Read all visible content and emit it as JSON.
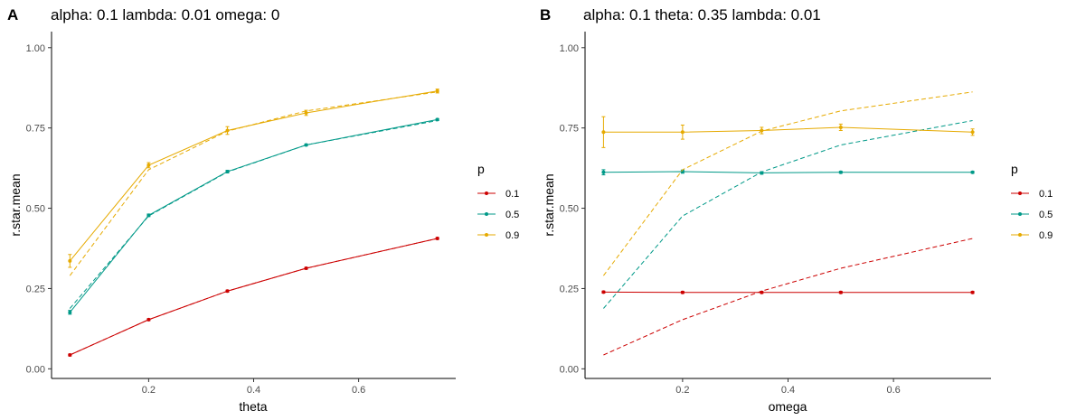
{
  "chart_data": [
    {
      "panel_tag": "A",
      "type": "line",
      "title": "alpha: 0.1 lambda: 0.01 omega: 0",
      "xlabel": "theta",
      "ylabel": "r.star.mean",
      "x_ticks": [
        0.2,
        0.4,
        0.6
      ],
      "y_ticks": [
        "0.00",
        "0.25",
        "0.50",
        "0.75",
        "1.00"
      ],
      "xlim": [
        0.015,
        0.785
      ],
      "ylim": [
        -0.03,
        1.05
      ],
      "grid": false,
      "legend": {
        "title": "p",
        "placement": "right"
      },
      "x": [
        0.05,
        0.2,
        0.35,
        0.5,
        0.75
      ],
      "series": [
        {
          "name": "0.1",
          "color": "#CC0000",
          "values": [
            0.043,
            0.153,
            0.242,
            0.313,
            0.406
          ],
          "errors": [
            0.003,
            0.003,
            0.003,
            0.003,
            0.003
          ],
          "reference": [
            0.043,
            0.153,
            0.242,
            0.313,
            0.406
          ]
        },
        {
          "name": "0.5",
          "color": "#009988",
          "values": [
            0.176,
            0.478,
            0.614,
            0.697,
            0.776
          ],
          "errors": [
            0.006,
            0.004,
            0.004,
            0.003,
            0.003
          ],
          "reference": [
            0.188,
            0.476,
            0.613,
            0.697,
            0.773
          ]
        },
        {
          "name": "0.9",
          "color": "#E6AA00",
          "values": [
            0.336,
            0.634,
            0.742,
            0.797,
            0.865
          ],
          "errors": [
            0.02,
            0.008,
            0.012,
            0.008,
            0.006
          ],
          "reference": [
            0.29,
            0.62,
            0.74,
            0.803,
            0.862
          ]
        }
      ]
    },
    {
      "panel_tag": "B",
      "type": "line",
      "title": "alpha: 0.1 theta: 0.35 lambda: 0.01",
      "xlabel": "omega",
      "ylabel": "r.star.mean",
      "x_ticks": [
        0.2,
        0.4,
        0.6
      ],
      "y_ticks": [
        "0.00",
        "0.25",
        "0.50",
        "0.75",
        "1.00"
      ],
      "xlim": [
        0.015,
        0.785
      ],
      "ylim": [
        -0.03,
        1.05
      ],
      "grid": false,
      "legend": {
        "title": "p",
        "placement": "right"
      },
      "x": [
        0.05,
        0.2,
        0.35,
        0.5,
        0.75
      ],
      "series": [
        {
          "name": "0.1",
          "color": "#CC0000",
          "values": [
            0.239,
            0.238,
            0.238,
            0.238,
            0.238
          ],
          "errors": [
            0.003,
            0.003,
            0.003,
            0.003,
            0.003
          ],
          "reference": [
            0.043,
            0.153,
            0.242,
            0.313,
            0.406
          ]
        },
        {
          "name": "0.5",
          "color": "#009988",
          "values": [
            0.612,
            0.614,
            0.61,
            0.612,
            0.612
          ],
          "errors": [
            0.008,
            0.005,
            0.004,
            0.003,
            0.003
          ],
          "reference": [
            0.188,
            0.476,
            0.613,
            0.697,
            0.773
          ]
        },
        {
          "name": "0.9",
          "color": "#E6AA00",
          "values": [
            0.737,
            0.737,
            0.742,
            0.752,
            0.737
          ],
          "errors": [
            0.048,
            0.022,
            0.01,
            0.01,
            0.01
          ],
          "reference": [
            0.29,
            0.62,
            0.74,
            0.803,
            0.862
          ]
        }
      ]
    }
  ]
}
